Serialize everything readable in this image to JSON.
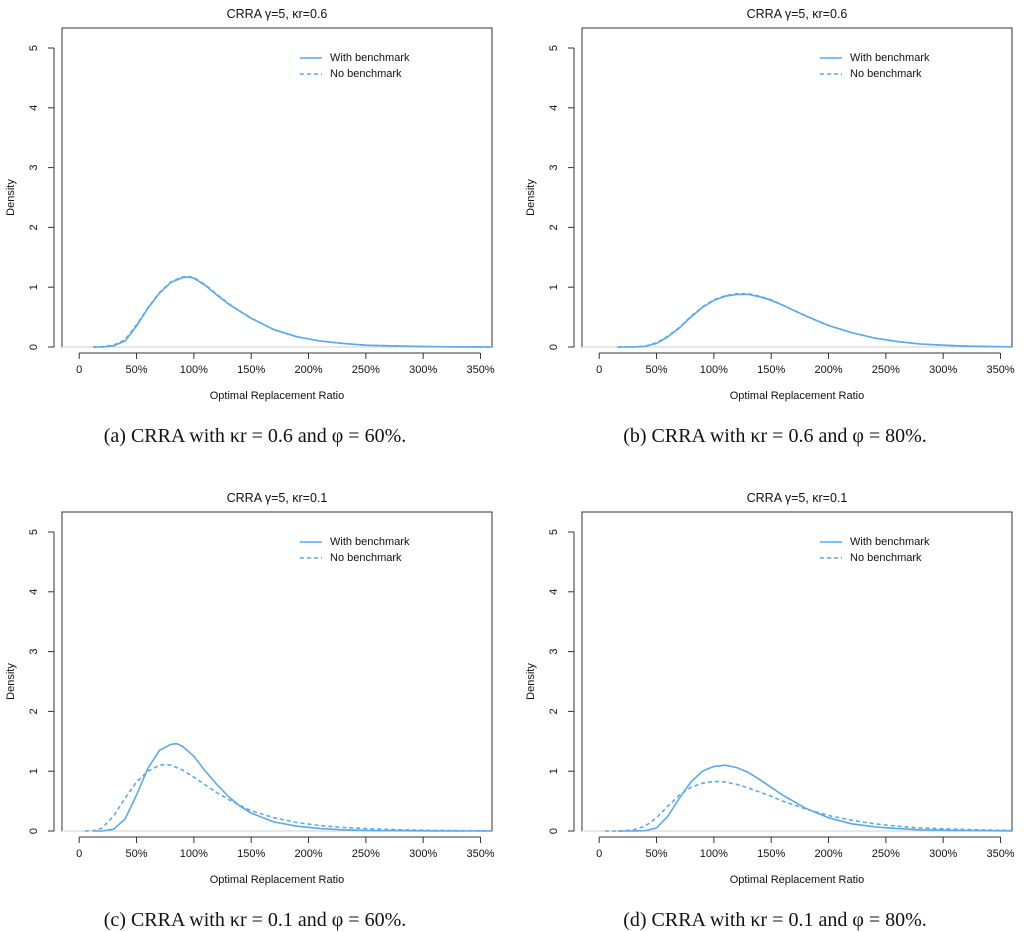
{
  "colors": {
    "series": "#5aa9ea",
    "axis": "#333333",
    "baseline": "#cfcfcf"
  },
  "chart_data": [
    {
      "type": "line",
      "title": "CRRA γ=5, κr=0.6",
      "xlabel": "Optimal Replacement Ratio",
      "ylabel": "Density",
      "xlim": [
        -0.15,
        3.6
      ],
      "ylim": [
        0,
        5
      ],
      "xticks": [
        0,
        0.5,
        1,
        1.5,
        2,
        2.5,
        3,
        3.5
      ],
      "xtick_labels": [
        "0",
        "50%",
        "100%",
        "150%",
        "200%",
        "250%",
        "300%",
        "350%"
      ],
      "yticks": [
        0,
        1,
        2,
        3,
        4,
        5
      ],
      "ytick_labels": [
        "0",
        "1",
        "2",
        "3",
        "4",
        "5"
      ],
      "legend": "top-right",
      "caption": "(a) CRRA with κr = 0.6 and φ = 60%.",
      "series": [
        {
          "name": "With benchmark",
          "style": "solid",
          "x": [
            0.12,
            0.2,
            0.3,
            0.4,
            0.5,
            0.6,
            0.7,
            0.8,
            0.9,
            0.95,
            1.0,
            1.1,
            1.2,
            1.3,
            1.4,
            1.5,
            1.7,
            1.9,
            2.1,
            2.3,
            2.5,
            2.8,
            3.1,
            3.4,
            3.6
          ],
          "y": [
            0,
            0,
            0.02,
            0.1,
            0.35,
            0.65,
            0.9,
            1.08,
            1.16,
            1.17,
            1.15,
            1.03,
            0.87,
            0.72,
            0.6,
            0.48,
            0.29,
            0.17,
            0.1,
            0.06,
            0.03,
            0.015,
            0.005,
            0.002,
            0
          ]
        },
        {
          "name": "No benchmark",
          "style": "dashed",
          "x": [
            0.12,
            0.2,
            0.3,
            0.4,
            0.5,
            0.6,
            0.7,
            0.8,
            0.9,
            0.95,
            1.0,
            1.1,
            1.2,
            1.3,
            1.4,
            1.5,
            1.7,
            1.9,
            2.1,
            2.3,
            2.5,
            2.8,
            3.1,
            3.4,
            3.6
          ],
          "y": [
            0,
            0.005,
            0.03,
            0.12,
            0.37,
            0.66,
            0.91,
            1.09,
            1.17,
            1.18,
            1.16,
            1.04,
            0.88,
            0.73,
            0.6,
            0.48,
            0.29,
            0.17,
            0.1,
            0.06,
            0.03,
            0.015,
            0.005,
            0.002,
            0
          ]
        }
      ]
    },
    {
      "type": "line",
      "title": "CRRA γ=5, κr=0.6",
      "xlabel": "Optimal Replacement Ratio",
      "ylabel": "Density",
      "xlim": [
        -0.15,
        3.6
      ],
      "ylim": [
        0,
        5
      ],
      "xticks": [
        0,
        0.5,
        1,
        1.5,
        2,
        2.5,
        3,
        3.5
      ],
      "xtick_labels": [
        "0",
        "50%",
        "100%",
        "150%",
        "200%",
        "250%",
        "300%",
        "350%"
      ],
      "yticks": [
        0,
        1,
        2,
        3,
        4,
        5
      ],
      "ytick_labels": [
        "0",
        "1",
        "2",
        "3",
        "4",
        "5"
      ],
      "legend": "top-right",
      "caption": "(b) CRRA with κr = 0.6 and φ = 80%.",
      "series": [
        {
          "name": "With benchmark",
          "style": "solid",
          "x": [
            0.16,
            0.3,
            0.4,
            0.5,
            0.6,
            0.7,
            0.8,
            0.9,
            1.0,
            1.1,
            1.2,
            1.3,
            1.4,
            1.5,
            1.6,
            1.7,
            1.8,
            2.0,
            2.2,
            2.4,
            2.6,
            2.8,
            3.0,
            3.2,
            3.4,
            3.6
          ],
          "y": [
            0,
            0,
            0.01,
            0.06,
            0.17,
            0.32,
            0.5,
            0.66,
            0.78,
            0.85,
            0.88,
            0.88,
            0.84,
            0.78,
            0.7,
            0.61,
            0.52,
            0.36,
            0.24,
            0.15,
            0.09,
            0.05,
            0.03,
            0.015,
            0.007,
            0.003
          ]
        },
        {
          "name": "No benchmark",
          "style": "dashed",
          "x": [
            0.16,
            0.3,
            0.4,
            0.5,
            0.6,
            0.7,
            0.8,
            0.9,
            1.0,
            1.1,
            1.2,
            1.3,
            1.4,
            1.5,
            1.6,
            1.7,
            1.8,
            2.0,
            2.2,
            2.4,
            2.6,
            2.8,
            3.0,
            3.2,
            3.4,
            3.6
          ],
          "y": [
            0,
            0.002,
            0.015,
            0.07,
            0.18,
            0.33,
            0.51,
            0.67,
            0.79,
            0.86,
            0.89,
            0.89,
            0.85,
            0.79,
            0.7,
            0.61,
            0.52,
            0.36,
            0.24,
            0.15,
            0.09,
            0.05,
            0.03,
            0.015,
            0.007,
            0.003
          ]
        }
      ]
    },
    {
      "type": "line",
      "title": "CRRA γ=5, κr=0.1",
      "xlabel": "Optimal Replacement Ratio",
      "ylabel": "Density",
      "xlim": [
        -0.15,
        3.6
      ],
      "ylim": [
        0,
        5
      ],
      "xticks": [
        0,
        0.5,
        1,
        1.5,
        2,
        2.5,
        3,
        3.5
      ],
      "xtick_labels": [
        "0",
        "50%",
        "100%",
        "150%",
        "200%",
        "250%",
        "300%",
        "350%"
      ],
      "yticks": [
        0,
        1,
        2,
        3,
        4,
        5
      ],
      "ytick_labels": [
        "0",
        "1",
        "2",
        "3",
        "4",
        "5"
      ],
      "legend": "top-right",
      "caption": "(c) CRRA with κr = 0.1 and φ = 60%.",
      "series": [
        {
          "name": "With benchmark",
          "style": "solid",
          "x": [
            0.12,
            0.2,
            0.3,
            0.4,
            0.5,
            0.6,
            0.7,
            0.8,
            0.85,
            0.9,
            1.0,
            1.1,
            1.2,
            1.3,
            1.4,
            1.5,
            1.7,
            1.9,
            2.1,
            2.3,
            2.5,
            2.8,
            3.1,
            3.4,
            3.6
          ],
          "y": [
            0,
            0,
            0.03,
            0.2,
            0.6,
            1.05,
            1.35,
            1.45,
            1.46,
            1.42,
            1.25,
            1.0,
            0.78,
            0.58,
            0.42,
            0.3,
            0.15,
            0.08,
            0.04,
            0.02,
            0.01,
            0.005,
            0.002,
            0,
            0
          ]
        },
        {
          "name": "No benchmark",
          "style": "dashed",
          "x": [
            0.05,
            0.15,
            0.2,
            0.3,
            0.4,
            0.5,
            0.6,
            0.7,
            0.75,
            0.8,
            0.9,
            1.0,
            1.1,
            1.2,
            1.3,
            1.4,
            1.5,
            1.7,
            1.9,
            2.1,
            2.3,
            2.5,
            2.8,
            3.1,
            3.4,
            3.6
          ],
          "y": [
            0,
            0.01,
            0.05,
            0.25,
            0.55,
            0.82,
            1.0,
            1.1,
            1.11,
            1.1,
            1.02,
            0.9,
            0.77,
            0.64,
            0.53,
            0.43,
            0.34,
            0.22,
            0.14,
            0.09,
            0.06,
            0.04,
            0.02,
            0.01,
            0.005,
            0.002
          ]
        }
      ]
    },
    {
      "type": "line",
      "title": "CRRA γ=5, κr=0.1",
      "xlabel": "Optimal Replacement Ratio",
      "ylabel": "Density",
      "xlim": [
        -0.15,
        3.6
      ],
      "ylim": [
        0,
        5
      ],
      "xticks": [
        0,
        0.5,
        1,
        1.5,
        2,
        2.5,
        3,
        3.5
      ],
      "xtick_labels": [
        "0",
        "50%",
        "100%",
        "150%",
        "200%",
        "250%",
        "300%",
        "350%"
      ],
      "yticks": [
        0,
        1,
        2,
        3,
        4,
        5
      ],
      "ytick_labels": [
        "0",
        "1",
        "2",
        "3",
        "4",
        "5"
      ],
      "legend": "top-right",
      "caption": "(d) CRRA with κr = 0.1 and φ = 80%.",
      "series": [
        {
          "name": "With benchmark",
          "style": "solid",
          "x": [
            0.16,
            0.3,
            0.4,
            0.5,
            0.6,
            0.7,
            0.8,
            0.9,
            1.0,
            1.1,
            1.2,
            1.3,
            1.4,
            1.5,
            1.6,
            1.8,
            2.0,
            2.2,
            2.4,
            2.6,
            2.8,
            3.1,
            3.4,
            3.6
          ],
          "y": [
            0,
            0,
            0.005,
            0.05,
            0.25,
            0.55,
            0.82,
            1.0,
            1.08,
            1.1,
            1.06,
            0.98,
            0.86,
            0.73,
            0.6,
            0.38,
            0.22,
            0.12,
            0.07,
            0.04,
            0.02,
            0.01,
            0.005,
            0.002
          ]
        },
        {
          "name": "No benchmark",
          "style": "dashed",
          "x": [
            0.05,
            0.2,
            0.3,
            0.4,
            0.5,
            0.6,
            0.7,
            0.8,
            0.9,
            1.0,
            1.1,
            1.2,
            1.3,
            1.4,
            1.5,
            1.6,
            1.8,
            2.0,
            2.2,
            2.4,
            2.6,
            2.8,
            3.1,
            3.4,
            3.6
          ],
          "y": [
            0,
            0,
            0.02,
            0.08,
            0.22,
            0.42,
            0.6,
            0.73,
            0.8,
            0.83,
            0.82,
            0.78,
            0.72,
            0.65,
            0.58,
            0.5,
            0.37,
            0.26,
            0.18,
            0.12,
            0.08,
            0.05,
            0.03,
            0.015,
            0.008
          ]
        }
      ]
    }
  ]
}
